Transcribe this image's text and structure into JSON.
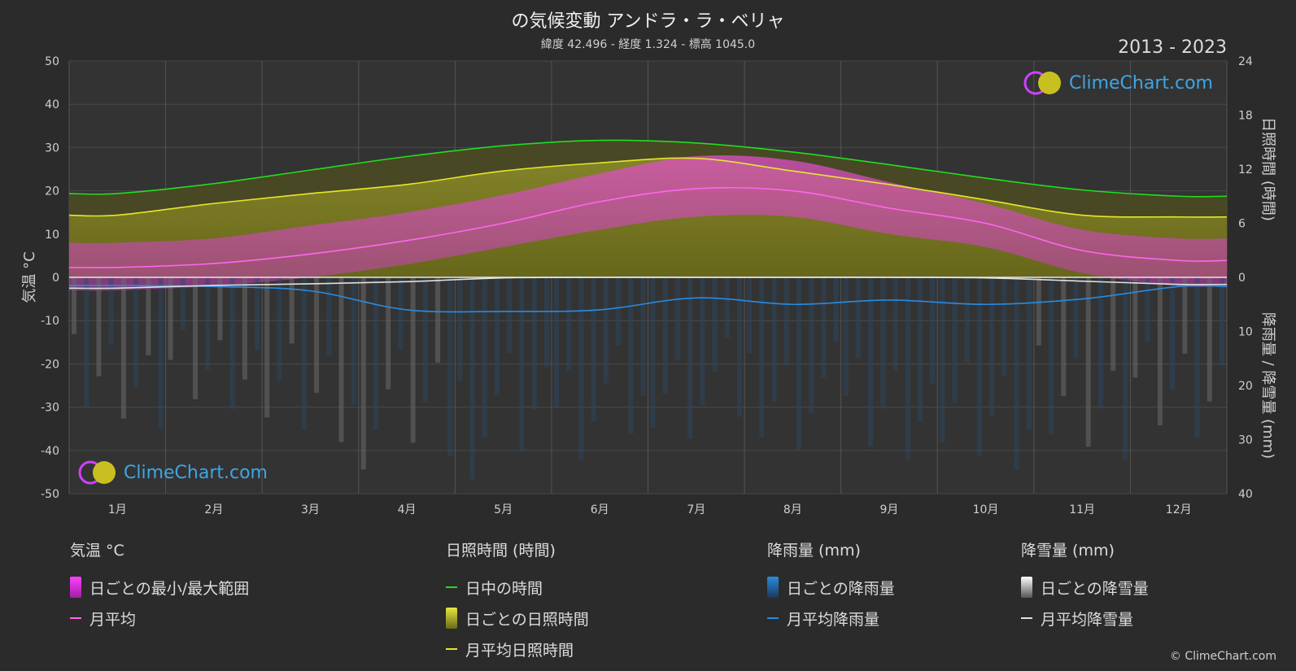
{
  "header": {
    "title": "の気候変動 アンドラ・ラ・ベリャ",
    "subtitle": "緯度 42.496 - 経度 1.324 - 標高 1045.0",
    "years": "2013 - 2023"
  },
  "brand": {
    "logo_text": "ClimeChart.com",
    "copyright": "© ClimeChart.com"
  },
  "chart_data": {
    "type": "line",
    "categories": [
      "1月",
      "2月",
      "3月",
      "4月",
      "5月",
      "6月",
      "7月",
      "8月",
      "9月",
      "10月",
      "11月",
      "12月"
    ],
    "y_left": {
      "label": "気温 °C",
      "range": [
        -50,
        50
      ],
      "ticks": [
        50,
        40,
        30,
        20,
        10,
        0,
        -10,
        -20,
        -30,
        -40,
        -50
      ]
    },
    "y_right_top": {
      "label": "日照時間 (時間)",
      "range": [
        0,
        24
      ],
      "ticks": [
        24,
        18,
        12,
        6,
        0
      ]
    },
    "y_right_bottom": {
      "label": "降雨量 / 降雪量 (mm)",
      "range": [
        0,
        40
      ],
      "ticks": [
        0,
        10,
        20,
        30,
        40
      ]
    },
    "grid": true,
    "series": [
      {
        "name": "日中の時間",
        "axis": "sunshine_hours",
        "color": "#22dd22",
        "values": [
          9.3,
          10.4,
          11.9,
          13.4,
          14.6,
          15.2,
          14.9,
          13.9,
          12.5,
          11.0,
          9.7,
          9.0
        ]
      },
      {
        "name": "月平均日照時間",
        "axis": "sunshine_hours",
        "color": "#e6e62a",
        "values": [
          6.9,
          8.2,
          9.3,
          10.3,
          11.8,
          12.7,
          13.2,
          11.8,
          10.3,
          8.6,
          6.9,
          6.7
        ]
      },
      {
        "name": "月平均",
        "axis": "temperature_c",
        "color": "#ff66ee",
        "values": [
          2.3,
          3.2,
          5.4,
          8.5,
          12.5,
          17.5,
          20.5,
          20.0,
          16.0,
          12.5,
          6.2,
          3.9
        ]
      },
      {
        "name": "月平均降雨量",
        "axis": "precip_mm",
        "color": "#2a8be0",
        "values": [
          1.5,
          1.7,
          2.5,
          6.0,
          6.3,
          6.0,
          3.8,
          5.0,
          4.2,
          5.0,
          4.0,
          1.7
        ]
      },
      {
        "name": "月平均降雪量",
        "axis": "precip_mm",
        "color": "#e0e0e0",
        "values": [
          2.0,
          1.5,
          1.2,
          0.8,
          0.1,
          0,
          0,
          0,
          0,
          0.1,
          0.7,
          1.3
        ]
      }
    ],
    "daily_temperature_range": {
      "name": "日ごとの最小/最大範囲",
      "min": [
        -3,
        -2,
        0,
        3,
        7,
        11,
        14,
        14,
        10,
        7,
        1,
        -2
      ],
      "max": [
        8,
        9,
        12,
        15,
        19,
        24,
        28,
        27,
        22,
        17,
        11,
        9
      ]
    },
    "daily_precip_max_mm": [
      30,
      28,
      35,
      38,
      40,
      36,
      32,
      34,
      36,
      38,
      36,
      34
    ]
  },
  "legend": {
    "temp": {
      "head": "気温 °C",
      "range": "日ごとの最小/最大範囲",
      "avg": "月平均"
    },
    "sun": {
      "head": "日照時間 (時間)",
      "daylight": "日中の時間",
      "daily": "日ごとの日照時間",
      "avg": "月平均日照時間"
    },
    "rain": {
      "head": "降雨量 (mm)",
      "daily": "日ごとの降雨量",
      "avg": "月平均降雨量"
    },
    "snow": {
      "head": "降雪量 (mm)",
      "daily": "日ごとの降雪量",
      "avg": "月平均降雪量"
    }
  },
  "colors": {
    "background": "#2b2b2b",
    "plot": "#333333",
    "daylight": "#22dd22",
    "sunshine": "#e6e62a",
    "temp": "#ff66ee",
    "rain": "#2a8be0",
    "snow": "#e0e0e0"
  }
}
